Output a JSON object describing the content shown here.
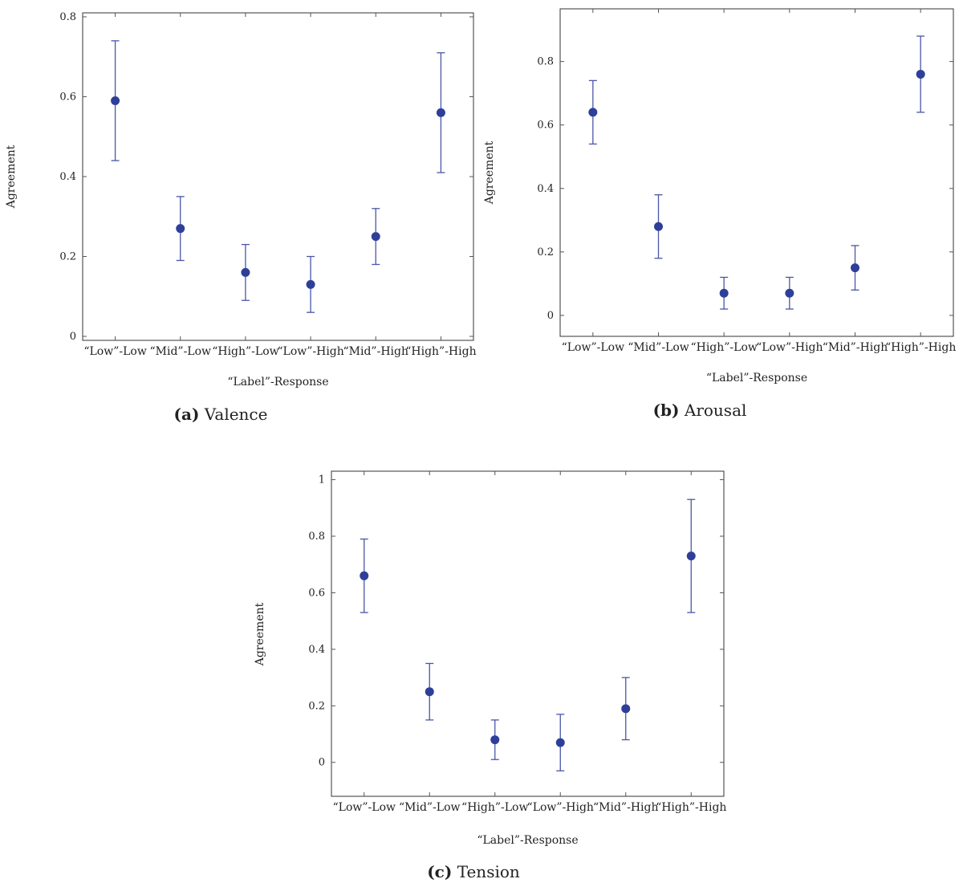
{
  "chart_data": [
    {
      "type": "scatter",
      "panel_label": "(a)",
      "caption": "Valence",
      "xlabel": "“Label”-Response",
      "ylabel": "Agreement",
      "categories": [
        "“Low”-Low",
        "“Mid”-Low",
        "“High”-Low",
        "“Low”-High",
        "“Mid”-High",
        "“High”-High"
      ],
      "values": [
        0.59,
        0.27,
        0.16,
        0.13,
        0.25,
        0.56
      ],
      "err_low": [
        0.44,
        0.19,
        0.09,
        0.06,
        0.18,
        0.41
      ],
      "err_high": [
        0.74,
        0.35,
        0.23,
        0.2,
        0.32,
        0.71
      ],
      "ylim": [
        -0.01,
        0.81
      ],
      "yticks": [
        0,
        0.2,
        0.4,
        0.6,
        0.8
      ],
      "ytick_labels": [
        "0",
        "0.2",
        "0.4",
        "0.6",
        "0.8"
      ],
      "color": "#2e3f99",
      "errorbar_color": "#4a56a6"
    },
    {
      "type": "scatter",
      "panel_label": "(b)",
      "caption": "Arousal",
      "xlabel": "“Label”-Response",
      "ylabel": "Agreement",
      "categories": [
        "“Low”-Low",
        "“Mid”-Low",
        "“High”-Low",
        "“Low”-High",
        "“Mid”-High",
        "“High”-High"
      ],
      "values": [
        0.64,
        0.28,
        0.07,
        0.07,
        0.15,
        0.76
      ],
      "err_low": [
        0.54,
        0.18,
        0.02,
        0.02,
        0.08,
        0.64
      ],
      "err_high": [
        0.74,
        0.38,
        0.12,
        0.12,
        0.22,
        0.88
      ],
      "ylim": [
        -0.066,
        0.966
      ],
      "yticks": [
        0,
        0.2,
        0.4,
        0.6,
        0.8
      ],
      "ytick_labels": [
        "0",
        "0.2",
        "0.4",
        "0.6",
        "0.8"
      ],
      "color": "#2e3f99",
      "errorbar_color": "#4a56a6"
    },
    {
      "type": "scatter",
      "panel_label": "(c)",
      "caption": "Tension",
      "xlabel": "“Label”-Response",
      "ylabel": "Agreement",
      "categories": [
        "“Low”-Low",
        "“Mid”-Low",
        "“High”-Low",
        "“Low”-High",
        "“Mid”-High",
        "“High”-High"
      ],
      "values": [
        0.66,
        0.25,
        0.08,
        0.07,
        0.19,
        0.73
      ],
      "err_low": [
        0.53,
        0.15,
        0.01,
        -0.03,
        0.08,
        0.53
      ],
      "err_high": [
        0.79,
        0.35,
        0.15,
        0.17,
        0.3,
        0.93
      ],
      "ylim": [
        -0.12,
        1.03
      ],
      "yticks": [
        0,
        0.2,
        0.4,
        0.6,
        0.8,
        1
      ],
      "ytick_labels": [
        "0",
        "0.2",
        "0.4",
        "0.6",
        "0.8",
        "1"
      ],
      "color": "#2e3f99",
      "errorbar_color": "#4a56a6"
    }
  ]
}
